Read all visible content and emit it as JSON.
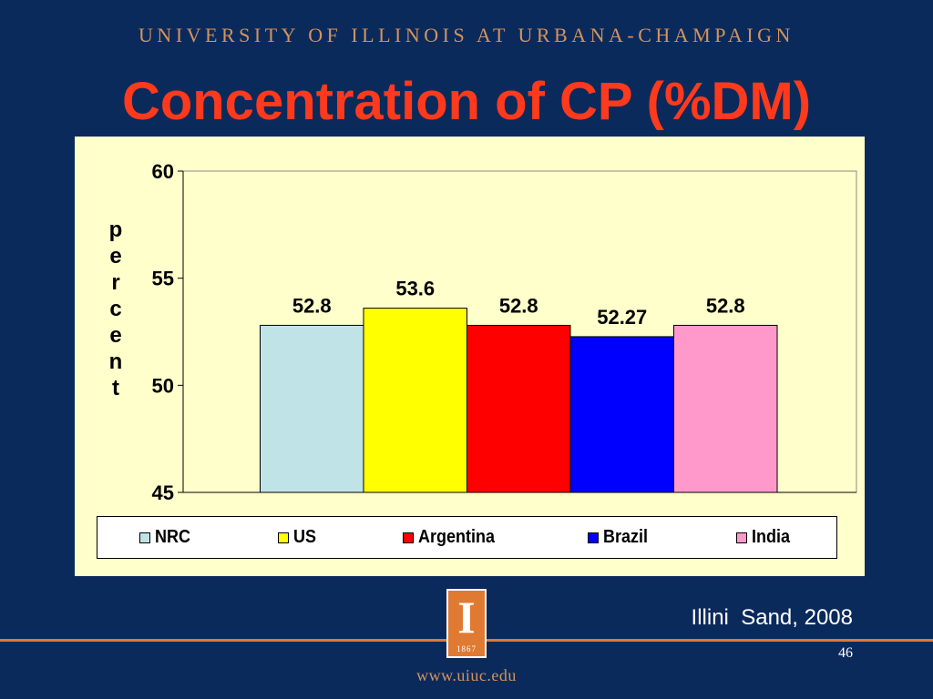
{
  "header": {
    "university": "UNIVERSITY OF ILLINOIS AT URBANA-CHAMPAIGN",
    "title": "Concentration of CP (%DM)"
  },
  "chart_data": {
    "type": "bar",
    "categories": [
      "NRC",
      "US",
      "Argentina",
      "Brazil",
      "India"
    ],
    "values": [
      52.8,
      53.6,
      52.8,
      52.27,
      52.8
    ],
    "data_labels": [
      "52.8",
      "53.6",
      "52.8",
      "52.27",
      "52.8"
    ],
    "colors": [
      "#bfe3e6",
      "#ffff00",
      "#ff0000",
      "#0000ff",
      "#ff99cc"
    ],
    "ylabel": "percent",
    "ylim": [
      45,
      60
    ],
    "yticks": [
      45,
      50,
      55,
      60
    ],
    "ytick_labels": [
      "45",
      "50",
      "55",
      "60"
    ],
    "grid": false,
    "legend": {
      "position": "bottom",
      "entries": [
        "NRC",
        "US",
        "Argentina",
        "Brazil",
        "India"
      ]
    }
  },
  "footer": {
    "citation": "Illini  Sand, 2008",
    "page_number": "46",
    "url": "www.uiuc.edu",
    "logo_letter": "I",
    "logo_year": "1867"
  }
}
